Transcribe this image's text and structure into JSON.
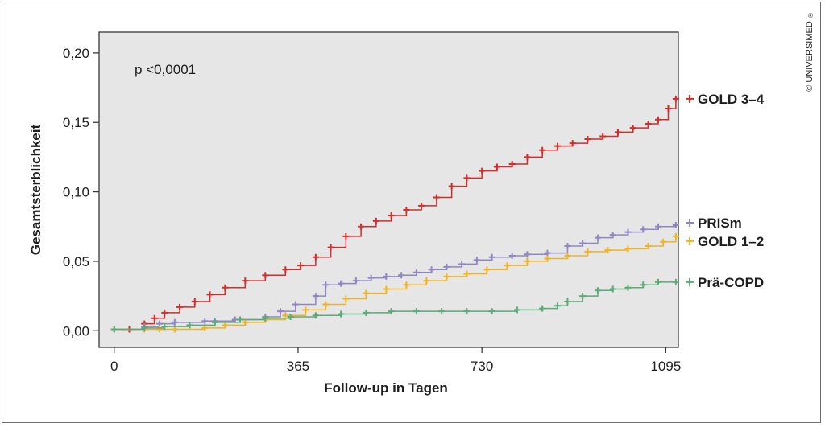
{
  "copyright": "© UNIVERSIMED",
  "copyright_mark": "®",
  "chart_data": {
    "type": "line",
    "subtype": "kaplan-meier cumulative incidence (step)",
    "xlabel": "Follow-up in Tagen",
    "ylabel": "Gesamtsterblichkeit",
    "xlim": [
      -30,
      1120
    ],
    "ylim": [
      -0.012,
      0.215
    ],
    "xticks": [
      0,
      365,
      730,
      1095
    ],
    "xtick_labels": [
      "0",
      "365",
      "730",
      "1095"
    ],
    "yticks": [
      0.0,
      0.05,
      0.1,
      0.15,
      0.2
    ],
    "ytick_labels": [
      "0,00",
      "0,05",
      "0,10",
      "0,15",
      "0,20"
    ],
    "grid": false,
    "background": "#e6e6e6",
    "annotation": "p <0,0001",
    "legend_placement": "right, at line ends",
    "censor_marker": "+",
    "series": [
      {
        "name": "GOLD 3–4",
        "color": "#d42b2b",
        "x": [
          0,
          30,
          60,
          80,
          100,
          130,
          160,
          190,
          220,
          260,
          300,
          340,
          370,
          400,
          430,
          460,
          490,
          520,
          550,
          580,
          610,
          640,
          670,
          700,
          730,
          760,
          790,
          820,
          850,
          880,
          910,
          940,
          970,
          1000,
          1030,
          1060,
          1080,
          1100,
          1115
        ],
        "y": [
          0.001,
          0.001,
          0.005,
          0.009,
          0.013,
          0.017,
          0.021,
          0.026,
          0.031,
          0.036,
          0.04,
          0.044,
          0.047,
          0.053,
          0.06,
          0.068,
          0.075,
          0.079,
          0.083,
          0.087,
          0.09,
          0.096,
          0.104,
          0.11,
          0.115,
          0.118,
          0.12,
          0.125,
          0.13,
          0.133,
          0.135,
          0.138,
          0.14,
          0.143,
          0.146,
          0.149,
          0.152,
          0.16,
          0.167
        ]
      },
      {
        "name": "PRISm",
        "color": "#8f87c2",
        "x": [
          0,
          60,
          90,
          120,
          180,
          200,
          240,
          300,
          330,
          360,
          400,
          420,
          450,
          480,
          510,
          540,
          570,
          600,
          630,
          660,
          690,
          720,
          750,
          790,
          820,
          860,
          900,
          930,
          960,
          990,
          1020,
          1050,
          1080,
          1115
        ],
        "y": [
          0.001,
          0.003,
          0.005,
          0.006,
          0.007,
          0.007,
          0.008,
          0.01,
          0.014,
          0.019,
          0.025,
          0.033,
          0.034,
          0.036,
          0.038,
          0.039,
          0.04,
          0.042,
          0.044,
          0.046,
          0.048,
          0.051,
          0.053,
          0.054,
          0.055,
          0.056,
          0.061,
          0.063,
          0.067,
          0.069,
          0.071,
          0.073,
          0.075,
          0.076
        ]
      },
      {
        "name": "GOLD 1–2",
        "color": "#f0b323",
        "x": [
          0,
          60,
          90,
          120,
          180,
          220,
          260,
          300,
          340,
          380,
          420,
          460,
          500,
          540,
          580,
          620,
          660,
          700,
          740,
          780,
          820,
          860,
          900,
          940,
          980,
          1020,
          1060,
          1090,
          1115
        ],
        "y": [
          0.001,
          0.001,
          0.001,
          0.001,
          0.002,
          0.004,
          0.006,
          0.008,
          0.011,
          0.015,
          0.019,
          0.023,
          0.027,
          0.03,
          0.033,
          0.036,
          0.039,
          0.041,
          0.044,
          0.047,
          0.05,
          0.052,
          0.054,
          0.057,
          0.058,
          0.059,
          0.061,
          0.064,
          0.068
        ]
      },
      {
        "name": "Prä-COPD",
        "color": "#5caa77",
        "x": [
          0,
          60,
          100,
          150,
          200,
          250,
          300,
          350,
          400,
          450,
          500,
          550,
          600,
          650,
          700,
          750,
          800,
          850,
          880,
          900,
          930,
          960,
          990,
          1020,
          1050,
          1080,
          1115
        ],
        "y": [
          0.001,
          0.002,
          0.003,
          0.004,
          0.006,
          0.008,
          0.009,
          0.01,
          0.011,
          0.012,
          0.013,
          0.014,
          0.014,
          0.014,
          0.014,
          0.014,
          0.015,
          0.016,
          0.018,
          0.021,
          0.025,
          0.029,
          0.03,
          0.031,
          0.033,
          0.035,
          0.035
        ]
      }
    ]
  }
}
